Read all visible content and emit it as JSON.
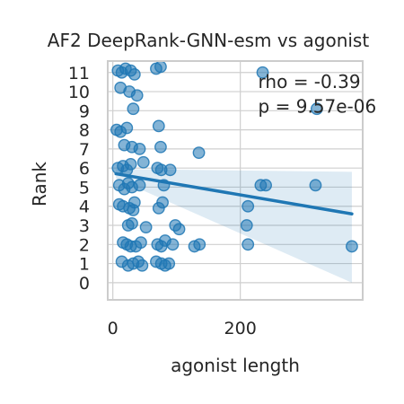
{
  "chart_data": {
    "type": "scatter",
    "title": "AF2 DeepRank-GNN-esm vs agonist",
    "xlabel": "agonist length",
    "ylabel": "Rank",
    "xlim": [
      -8,
      392
    ],
    "ylim": [
      -0.9,
      11.6
    ],
    "xticks": [
      0,
      200
    ],
    "yticks": [
      0,
      1,
      2,
      3,
      4,
      5,
      6,
      7,
      8,
      9,
      10,
      11
    ],
    "grid": true,
    "colors": {
      "points": "#1f77b4",
      "line": "#1f77b4",
      "band": "#1f77b4",
      "grid": "#cfcfcf",
      "spine": "#cccccc"
    },
    "annotations": [
      {
        "text": "rho = -0.39",
        "x": 228,
        "y": 10.2
      },
      {
        "text": "p = 9.57e-06",
        "x": 228,
        "y": 8.9
      }
    ],
    "regression": {
      "x": [
        5,
        375
      ],
      "y": [
        5.7,
        3.6
      ],
      "ci_upper": [
        5.95,
        5.8
      ],
      "ci_lower": [
        5.45,
        0.0
      ]
    },
    "series": [
      {
        "values": [
          [
            8,
            11.1
          ],
          [
            14,
            11.0
          ],
          [
            20,
            11.2
          ],
          [
            28,
            11.1
          ],
          [
            34,
            10.9
          ],
          [
            68,
            11.2
          ],
          [
            75,
            11.3
          ],
          [
            235,
            11.0
          ],
          [
            12,
            10.2
          ],
          [
            26,
            10.0
          ],
          [
            38,
            9.8
          ],
          [
            32,
            9.1
          ],
          [
            320,
            9.1
          ],
          [
            6,
            8.0
          ],
          [
            12,
            7.9
          ],
          [
            22,
            8.1
          ],
          [
            72,
            8.2
          ],
          [
            18,
            7.2
          ],
          [
            30,
            7.1
          ],
          [
            42,
            7.0
          ],
          [
            75,
            7.1
          ],
          [
            135,
            6.8
          ],
          [
            8,
            6.0
          ],
          [
            16,
            6.1
          ],
          [
            22,
            5.9
          ],
          [
            28,
            6.2
          ],
          [
            48,
            6.3
          ],
          [
            70,
            6.0
          ],
          [
            76,
            5.9
          ],
          [
            90,
            5.9
          ],
          [
            10,
            5.1
          ],
          [
            18,
            4.9
          ],
          [
            24,
            5.2
          ],
          [
            30,
            5.0
          ],
          [
            42,
            5.1
          ],
          [
            80,
            5.1
          ],
          [
            232,
            5.1
          ],
          [
            240,
            5.1
          ],
          [
            318,
            5.1
          ],
          [
            10,
            4.1
          ],
          [
            16,
            4.0
          ],
          [
            26,
            3.9
          ],
          [
            32,
            3.8
          ],
          [
            34,
            4.2
          ],
          [
            72,
            3.9
          ],
          [
            78,
            4.2
          ],
          [
            212,
            4.0
          ],
          [
            24,
            3.0
          ],
          [
            30,
            3.1
          ],
          [
            52,
            2.9
          ],
          [
            98,
            3.0
          ],
          [
            104,
            2.8
          ],
          [
            210,
            3.0
          ],
          [
            16,
            2.1
          ],
          [
            22,
            2.0
          ],
          [
            28,
            1.9
          ],
          [
            36,
            1.9
          ],
          [
            44,
            2.1
          ],
          [
            70,
            2.0
          ],
          [
            76,
            1.9
          ],
          [
            82,
            2.2
          ],
          [
            94,
            2.0
          ],
          [
            128,
            1.9
          ],
          [
            136,
            2.0
          ],
          [
            212,
            2.0
          ],
          [
            375,
            1.9
          ],
          [
            14,
            1.1
          ],
          [
            24,
            0.9
          ],
          [
            32,
            1.0
          ],
          [
            40,
            1.1
          ],
          [
            46,
            0.9
          ],
          [
            68,
            1.1
          ],
          [
            76,
            1.0
          ],
          [
            82,
            0.9
          ],
          [
            88,
            1.0
          ]
        ]
      }
    ]
  }
}
